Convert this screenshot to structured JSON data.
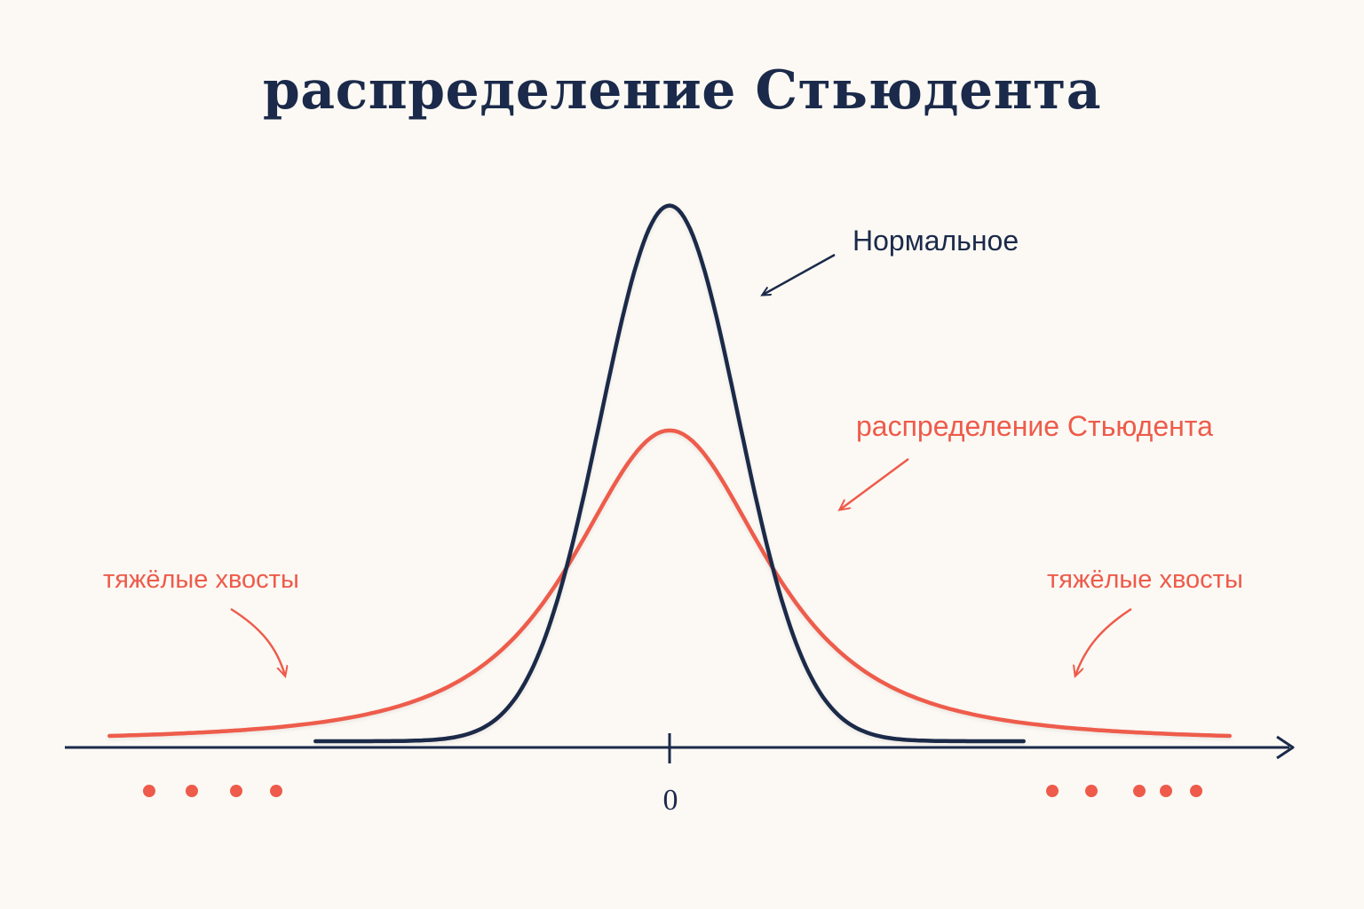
{
  "title": "распределение Стьюдента",
  "colors": {
    "background": "#fcf9f4",
    "normal": "#1b2a4a",
    "student": "#ee5b4b",
    "axis": "#1b2a4a"
  },
  "annotations": {
    "normal_label": "Нормальное",
    "student_label": "распределение Стьюдента",
    "tails_left": "тяжёлые хвосты",
    "tails_right": "тяжёлые хвосты"
  },
  "chart_data": {
    "type": "line",
    "title": "распределение Стьюдента",
    "xlabel": "",
    "ylabel": "",
    "x_ticks": [
      "0"
    ],
    "xlim": [
      -5.3,
      5.3
    ],
    "ylim": [
      0,
      0.42
    ],
    "grid": false,
    "x_axis_arrow": true,
    "series": [
      {
        "name": "Нормальное",
        "color": "#1b2a4a",
        "description_type": "normal",
        "mean": 0,
        "sd": 0.65,
        "x_range": [
          -3.35,
          3.35
        ],
        "y_peak": 0.405
      },
      {
        "name": "распределение Стьюдента",
        "color": "#ee5b4b",
        "description_type": "student-t",
        "df": 2,
        "x_range": [
          -5.3,
          5.3
        ],
        "y_peak": 0.235
      }
    ],
    "tail_dots": {
      "left_count": 4,
      "right_count": 5,
      "color": "#ee5b4b"
    }
  }
}
